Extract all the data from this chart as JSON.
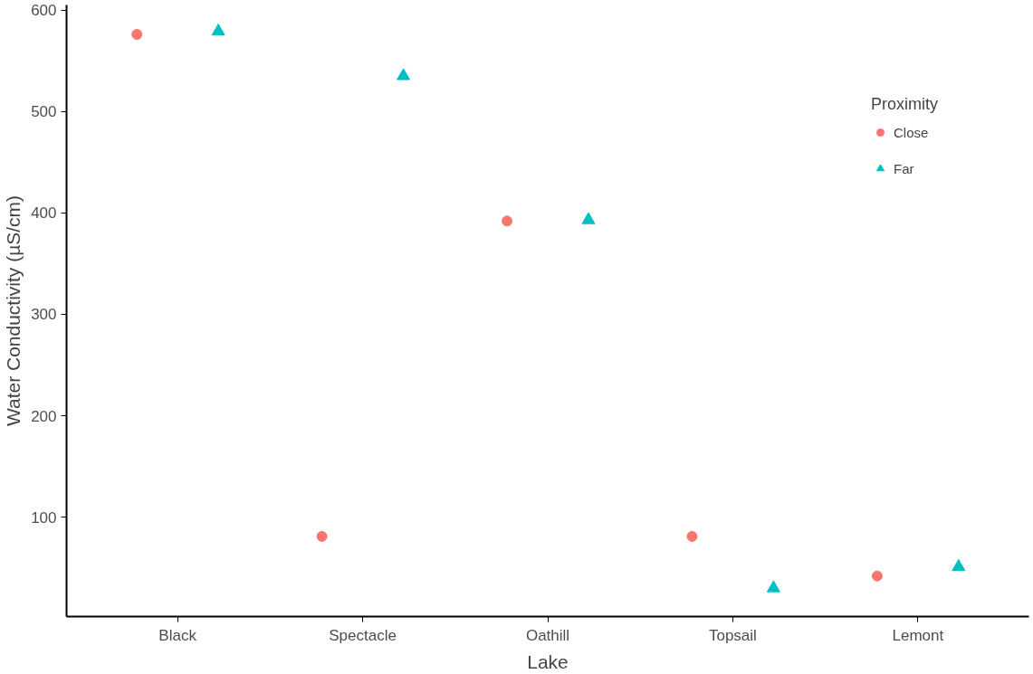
{
  "chart_data": {
    "type": "scatter",
    "xlabel": "Lake",
    "ylabel": "Water Conductivity (µS/cm)",
    "legend_title": "Proximity",
    "categories": [
      "Black",
      "Spectacle",
      "Oathill",
      "Topsail",
      "Lemont"
    ],
    "ylim": [
      2,
      605
    ],
    "yticks": [
      100,
      200,
      300,
      400,
      500,
      600
    ],
    "grid": false,
    "legend": "right",
    "series": [
      {
        "name": "Close",
        "color": "#f8766d",
        "marker": "circle",
        "values": [
          576,
          81,
          392,
          81,
          42
        ]
      },
      {
        "name": "Far",
        "color": "#00bfc4",
        "marker": "triangle",
        "values": [
          579,
          535,
          393,
          30,
          51
        ]
      }
    ]
  }
}
